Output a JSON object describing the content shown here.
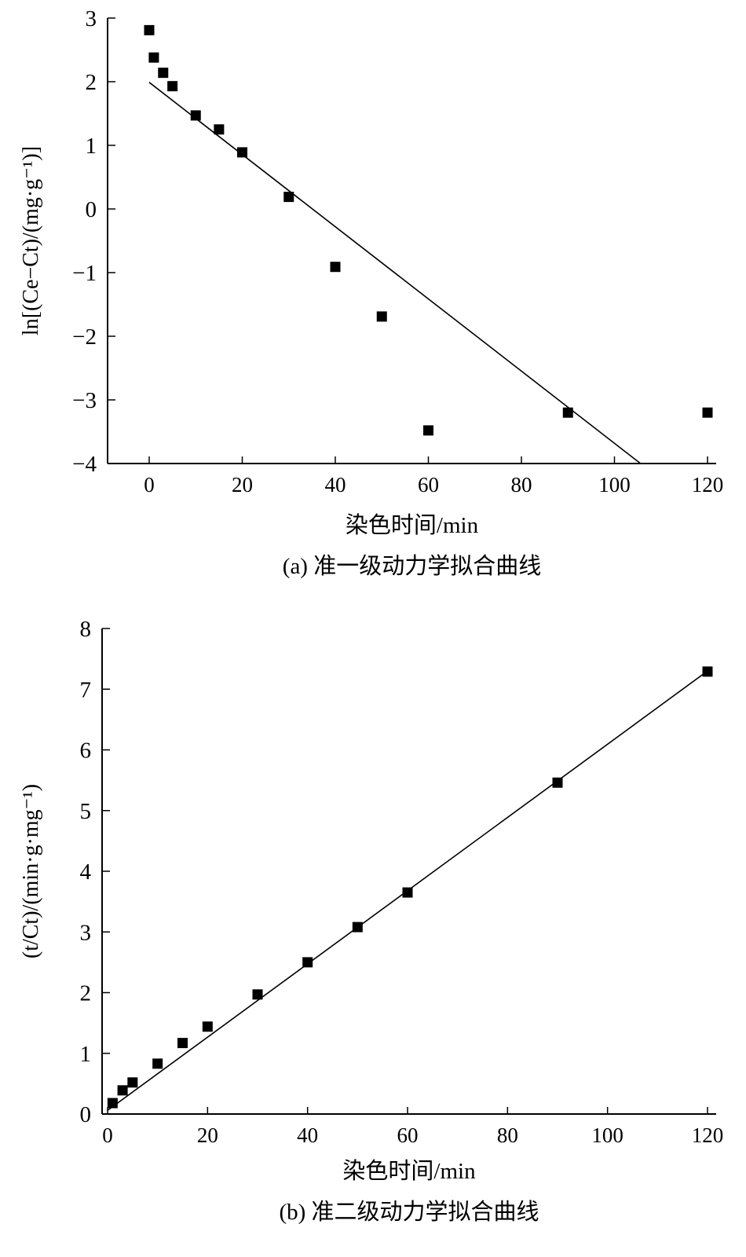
{
  "chart_data": [
    {
      "type": "scatter",
      "caption": "(a) 准一级动力学拟合曲线",
      "xlabel": "染色时间/min",
      "ylabel": "ln[(Ce−Ct)/(mg·g⁻¹)]",
      "xlim": [
        -10,
        122
      ],
      "ylim": [
        -4,
        3
      ],
      "xticks": [
        0,
        20,
        40,
        60,
        80,
        100,
        120
      ],
      "yticks": [
        -4,
        -3,
        -2,
        -1,
        0,
        1,
        2,
        3
      ],
      "ytick_labels": [
        "−4",
        "−3",
        "−2",
        "−1",
        "0",
        "1",
        "2",
        "3"
      ],
      "grid": false,
      "series": [
        {
          "name": "data",
          "marker": "square",
          "x": [
            0,
            1,
            3,
            5,
            10,
            15,
            20,
            30,
            40,
            50,
            60,
            90,
            120
          ],
          "y": [
            2.81,
            2.38,
            2.14,
            1.93,
            1.47,
            1.25,
            0.89,
            0.19,
            -0.91,
            -1.69,
            -3.48,
            -3.2,
            -3.2
          ]
        },
        {
          "name": "fit",
          "type": "line",
          "x": [
            0,
            105.6
          ],
          "y": [
            1.99,
            -4.0
          ]
        }
      ]
    },
    {
      "type": "scatter",
      "caption": "(b) 准二级动力学拟合曲线",
      "xlabel": "染色时间/min",
      "ylabel": "(t/Ct)/(min·g·mg⁻¹)",
      "xlim": [
        0,
        122
      ],
      "ylim": [
        0,
        8
      ],
      "xticks": [
        0,
        20,
        40,
        60,
        80,
        100,
        120
      ],
      "yticks": [
        0,
        1,
        2,
        3,
        4,
        5,
        6,
        7,
        8
      ],
      "ytick_labels": [
        "0",
        "1",
        "2",
        "3",
        "4",
        "5",
        "6",
        "7",
        "8"
      ],
      "grid": false,
      "series": [
        {
          "name": "data",
          "marker": "square",
          "x": [
            1,
            3,
            5,
            10,
            15,
            20,
            30,
            40,
            50,
            60,
            90,
            120
          ],
          "y": [
            0.18,
            0.39,
            0.52,
            0.83,
            1.17,
            1.44,
            1.97,
            2.5,
            3.08,
            3.65,
            5.46,
            7.29
          ]
        },
        {
          "name": "fit",
          "type": "line",
          "x": [
            0,
            120
          ],
          "y": [
            0.06,
            7.3
          ]
        }
      ]
    }
  ]
}
